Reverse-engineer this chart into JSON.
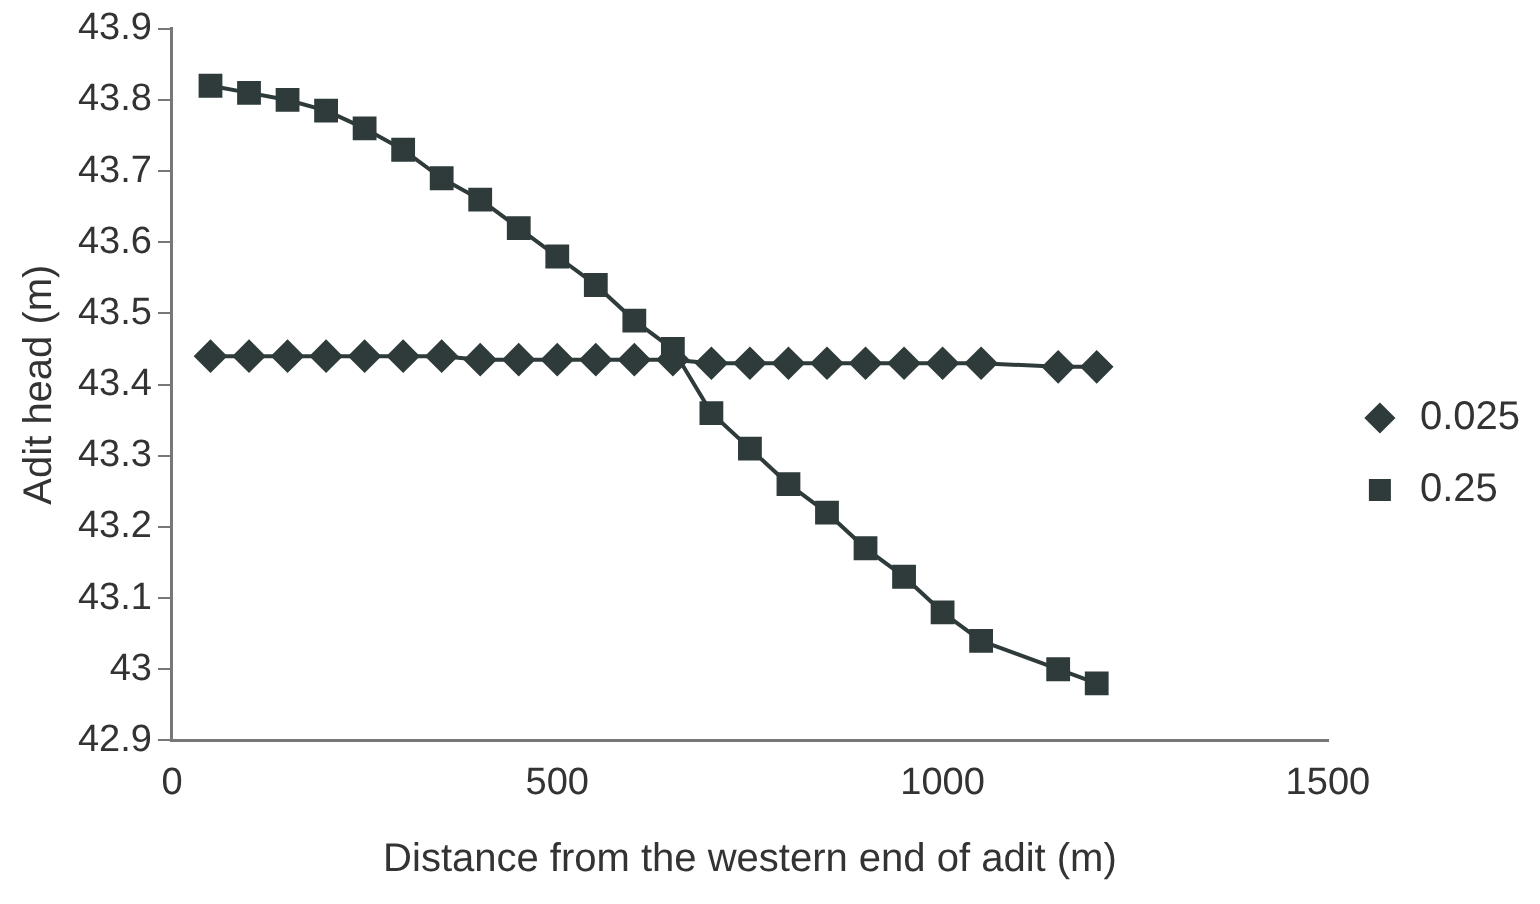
{
  "chart_data": {
    "type": "line",
    "xlabel": "Distance from the western end of adit (m)",
    "ylabel": "Adit head (m)",
    "xlim": [
      0,
      1500
    ],
    "xticks": [
      0,
      500,
      1000,
      1500
    ],
    "ylim": [
      42.9,
      43.9
    ],
    "yticks": [
      42.9,
      43,
      43.1,
      43.2,
      43.3,
      43.4,
      43.5,
      43.6,
      43.7,
      43.8,
      43.9
    ],
    "grid": false,
    "legend": "right",
    "line_style": "solid",
    "series": [
      {
        "name": "0.025",
        "color": "#2f3b3b",
        "marker": "diamond",
        "x": [
          50,
          100,
          150,
          200,
          250,
          300,
          350,
          400,
          450,
          500,
          550,
          600,
          650,
          700,
          750,
          800,
          850,
          900,
          950,
          1000,
          1050,
          1150,
          1200
        ],
        "values": [
          43.44,
          43.44,
          43.44,
          43.44,
          43.44,
          43.44,
          43.44,
          43.435,
          43.435,
          43.435,
          43.435,
          43.435,
          43.435,
          43.43,
          43.43,
          43.43,
          43.43,
          43.43,
          43.43,
          43.43,
          43.43,
          43.425,
          43.425
        ]
      },
      {
        "name": "0.25",
        "color": "#2f3b3b",
        "marker": "square",
        "x": [
          50,
          100,
          150,
          200,
          250,
          300,
          350,
          400,
          450,
          500,
          550,
          600,
          650,
          700,
          750,
          800,
          850,
          900,
          950,
          1000,
          1050,
          1150,
          1200
        ],
        "values": [
          43.82,
          43.81,
          43.8,
          43.785,
          43.76,
          43.73,
          43.69,
          43.66,
          43.62,
          43.58,
          43.54,
          43.49,
          43.45,
          43.36,
          43.31,
          43.26,
          43.22,
          43.17,
          43.13,
          43.08,
          43.04,
          43.0,
          42.98
        ]
      }
    ]
  }
}
